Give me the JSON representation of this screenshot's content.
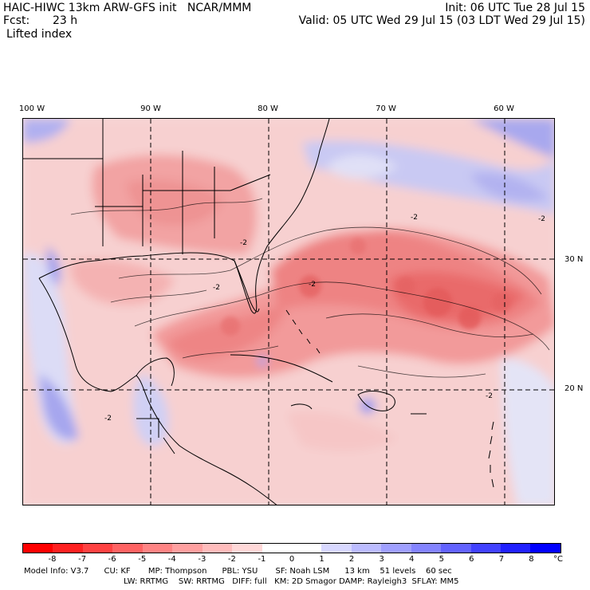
{
  "header": {
    "model_line": "HAIC-HIWC 13km ARW-GFS init   NCAR/MMM",
    "fcst_label": "Fcst:",
    "fcst_value": "23 h",
    "field": "Lifted index",
    "init": "Init: 06 UTC Tue 28 Jul 15",
    "valid": "Valid: 05 UTC Wed 29 Jul 15 (03 LDT Wed 29 Jul 15)"
  },
  "map": {
    "lon_labels": [
      "100 W",
      "90 W",
      "80 W",
      "70 W",
      "60 W"
    ],
    "lat_labels": [
      "30 N",
      "20 N"
    ],
    "contour_label": "-2"
  },
  "colorbar": {
    "ticks": [
      "-8",
      "-7",
      "-6",
      "-5",
      "-4",
      "-3",
      "-2",
      "-1",
      "0",
      "1",
      "2",
      "3",
      "4",
      "5",
      "6",
      "7",
      "8"
    ],
    "unit": "°C",
    "colors": [
      "#ff0000",
      "#ff2121",
      "#ff4242",
      "#ff6363",
      "#ff8484",
      "#ffa0a0",
      "#ffbcbc",
      "#ffd8d8",
      "#ffffff",
      "#ffffff",
      "#d8d8ff",
      "#bcbcff",
      "#a0a0ff",
      "#8484ff",
      "#6363ff",
      "#4242ff",
      "#2121ff",
      "#0000ff"
    ]
  },
  "info": {
    "line1": "Model Info: V3.7      CU: KF       MP: Thompson      PBL: YSU       SF: Noah LSM      13 km    51 levels    60 sec",
    "line2": "LW: RRTMG    SW: RRTMG   DIFF: full   KM: 2D Smagor DAMP: Rayleigh3  SFLAY: MM5"
  }
}
